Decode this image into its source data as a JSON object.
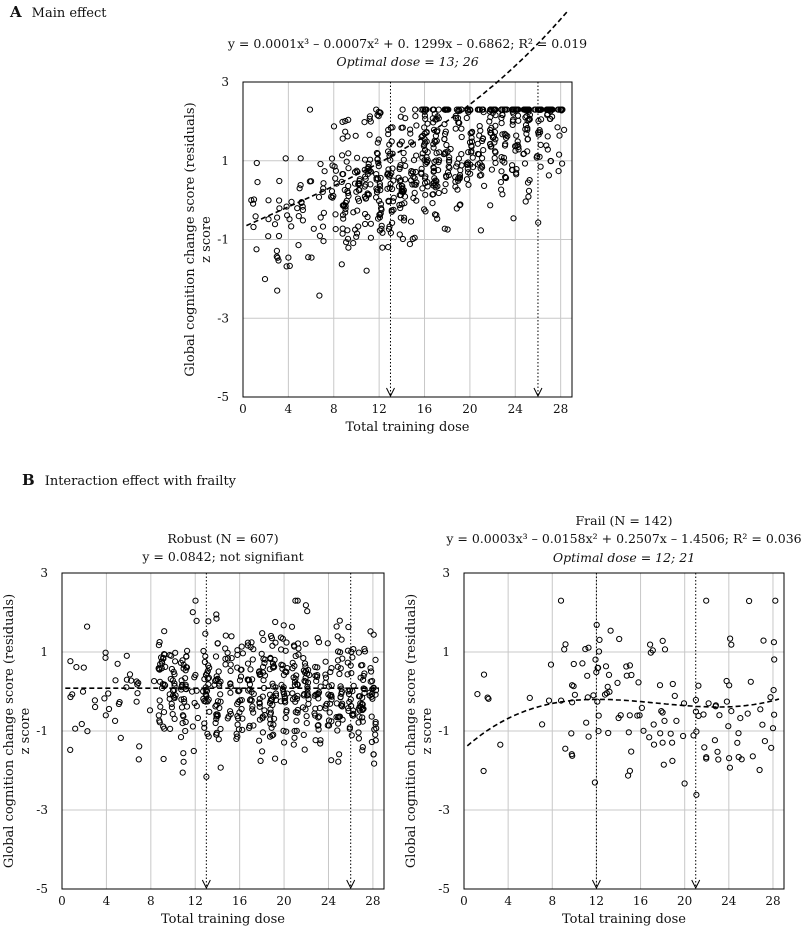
{
  "panelA": {
    "letter": "A",
    "title": "Main effect"
  },
  "panelB": {
    "letter": "B",
    "title": "Interaction effect with frailty"
  },
  "chart_data": [
    {
      "type": "scatter",
      "id": "main",
      "title_lines": [
        "y = 0.0001x³ – 0.0007x² + 0. 1299x – 0.6862; R² = 0.019"
      ],
      "optimal": "Optimal dose = 13; 26",
      "xlabel": "Total training dose",
      "ylabel": [
        "Global cognition change score (residuals)",
        "z score"
      ],
      "xlim": [
        0,
        29
      ],
      "ylim": [
        -5,
        3
      ],
      "xticks": [
        0,
        4,
        8,
        12,
        16,
        20,
        24,
        28
      ],
      "yticks": [
        3,
        1,
        -1,
        -3,
        -5
      ],
      "grid": true,
      "fit": {
        "coef": [
          0.0001,
          -0.0007,
          0.1299,
          -0.6862
        ],
        "r2": 0.019
      },
      "dose_markers": [
        13,
        26
      ],
      "points": {
        "n": 749,
        "x_range": [
          1,
          28
        ],
        "spread_sd": 0.9
      }
    },
    {
      "type": "scatter",
      "id": "robust",
      "title_lines": [
        "Robust (N = 607)",
        "y = 0.0842; not signifiant"
      ],
      "optimal": "",
      "xlabel": "Total training dose",
      "ylabel": [
        "Global cognition change score (residuals)",
        "z score"
      ],
      "xlim": [
        0,
        29
      ],
      "ylim": [
        -5,
        3
      ],
      "xticks": [
        0,
        4,
        8,
        12,
        16,
        20,
        24,
        28
      ],
      "yticks": [
        3,
        1,
        -1,
        -3,
        -5
      ],
      "grid": true,
      "fit": {
        "coef": [
          0,
          0,
          0,
          0.0842
        ]
      },
      "dose_markers": [
        13,
        26
      ],
      "points": {
        "n": 607,
        "x_range": [
          1,
          28
        ],
        "spread_sd": 0.8
      }
    },
    {
      "type": "scatter",
      "id": "frail",
      "title_lines": [
        "Frail (N = 142)",
        "y = 0.0003x³ – 0.0158x² + 0.2507x – 1.4506; R² = 0.036"
      ],
      "optimal": "Optimal dose = 12; 21",
      "xlabel": "Total training dose",
      "ylabel": [
        "Global cognition change score (residuals)",
        "z score"
      ],
      "xlim": [
        0,
        29
      ],
      "ylim": [
        -5,
        3
      ],
      "xticks": [
        0,
        4,
        8,
        12,
        16,
        20,
        24,
        28
      ],
      "yticks": [
        3,
        1,
        -1,
        -3,
        -5
      ],
      "grid": true,
      "fit": {
        "coef": [
          0.0003,
          -0.0158,
          0.2507,
          -1.4506
        ],
        "r2": 0.036
      },
      "dose_markers": [
        12,
        21
      ],
      "points": {
        "n": 142,
        "x_range": [
          1,
          28
        ],
        "spread_sd": 1.0
      }
    }
  ]
}
